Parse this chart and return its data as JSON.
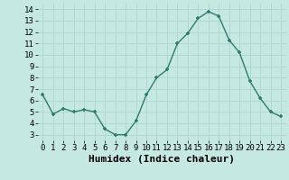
{
  "x": [
    0,
    1,
    2,
    3,
    4,
    5,
    6,
    7,
    8,
    9,
    10,
    11,
    12,
    13,
    14,
    15,
    16,
    17,
    18,
    19,
    20,
    21,
    22,
    23
  ],
  "y": [
    6.5,
    4.8,
    5.3,
    5.0,
    5.2,
    5.0,
    3.5,
    3.0,
    3.0,
    4.2,
    6.5,
    8.0,
    8.7,
    11.0,
    11.9,
    13.2,
    13.8,
    13.4,
    11.3,
    10.2,
    7.7,
    6.2,
    5.0,
    4.6
  ],
  "xlabel": "Humidex (Indice chaleur)",
  "xlim": [
    -0.5,
    23.5
  ],
  "ylim": [
    2.5,
    14.5
  ],
  "yticks": [
    3,
    4,
    5,
    6,
    7,
    8,
    9,
    10,
    11,
    12,
    13,
    14
  ],
  "xticks": [
    0,
    1,
    2,
    3,
    4,
    5,
    6,
    7,
    8,
    9,
    10,
    11,
    12,
    13,
    14,
    15,
    16,
    17,
    18,
    19,
    20,
    21,
    22,
    23
  ],
  "line_color": "#2d7d6e",
  "marker_color": "#2d7d6e",
  "bg_color": "#c5e8e0",
  "grid_color": "#b0d8ce",
  "tick_fontsize": 6.5,
  "xlabel_fontsize": 8
}
